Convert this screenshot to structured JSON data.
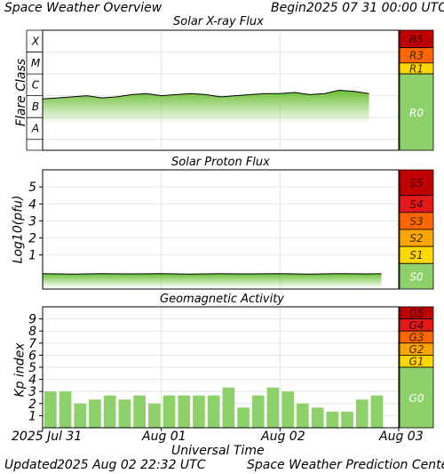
{
  "header": {
    "title": "Space Weather Overview",
    "begin_label": "Begin",
    "begin_date": "2025 07 31 00:00 UTC"
  },
  "footer": {
    "updated_label": "Updated",
    "updated_date": "2025 Aug 02 22:32 UTC",
    "source": "Space Weather Prediction Center",
    "xlabel": "Universal Time"
  },
  "x_axis": {
    "ticks": [
      "2025 Jul 31",
      "Aug 01",
      "Aug 02",
      "Aug 03"
    ],
    "days": 3
  },
  "colors": {
    "trace_fill": "#7ac943",
    "bar_fill": "#8ed16a",
    "level_green": "#8ed16a",
    "level_yellow": "#ffd700",
    "level_amber": "#ffa500",
    "level_orange": "#ff6600",
    "level_red": "#e41a1a",
    "level_darkred": "#c00000"
  },
  "chart_data": [
    {
      "type": "area",
      "title": "Solar X-ray Flux",
      "ylabel": "Flare Class",
      "classes": [
        "X",
        "M",
        "C",
        "B",
        "A"
      ],
      "ylim_log": [
        -8.5,
        -3
      ],
      "x_hours": [
        0,
        3,
        6,
        9,
        12,
        15,
        18,
        21,
        24,
        27,
        30,
        33,
        36,
        39,
        42,
        45,
        48,
        51,
        54,
        57,
        60,
        63,
        66,
        69,
        72
      ],
      "flux_log": [
        -6.15,
        -6.1,
        -6.05,
        -6.0,
        -6.1,
        -6.05,
        -5.95,
        -5.9,
        -6.0,
        -5.95,
        -5.9,
        -5.95,
        -6.05,
        -6.0,
        -5.95,
        -5.9,
        -5.9,
        -5.85,
        -5.95,
        -5.9,
        -5.75,
        -5.8,
        -5.9,
        -5.95,
        -6.05
      ],
      "levels": [
        {
          "label": "R5",
          "color": "#c00000"
        },
        {
          "label": "R3",
          "color": "#ff6600"
        },
        {
          "label": "R1",
          "color": "#ffd700"
        },
        {
          "label": "R0",
          "color": "#8ed16a"
        }
      ]
    },
    {
      "type": "area",
      "title": "Solar Proton Flux",
      "ylabel": "Log10(pfu)",
      "ylim": [
        -1,
        6
      ],
      "yticks": [
        1,
        2,
        3,
        4,
        5
      ],
      "x_hours": [
        0,
        6,
        12,
        18,
        24,
        30,
        36,
        42,
        48,
        54,
        60,
        66,
        72
      ],
      "log_pfu": [
        -0.1,
        -0.12,
        -0.1,
        -0.11,
        -0.1,
        -0.12,
        -0.1,
        -0.11,
        -0.1,
        -0.12,
        -0.1,
        -0.11,
        -0.1
      ],
      "levels": [
        {
          "label": "S5",
          "color": "#c00000"
        },
        {
          "label": "S4",
          "color": "#e41a1a"
        },
        {
          "label": "S3",
          "color": "#ff6600"
        },
        {
          "label": "S2",
          "color": "#ffa500"
        },
        {
          "label": "S1",
          "color": "#ffd700"
        },
        {
          "label": "S0",
          "color": "#8ed16a"
        }
      ]
    },
    {
      "type": "bar",
      "title": "Geomagnetic Activity",
      "ylabel": "Kp index",
      "ylim": [
        0,
        10
      ],
      "yticks": [
        1,
        2,
        3,
        4,
        5,
        6,
        7,
        8,
        9
      ],
      "bar_hours": 3,
      "values": [
        3.0,
        3.0,
        2.0,
        2.33,
        2.67,
        2.33,
        2.67,
        2.0,
        2.67,
        2.67,
        2.67,
        2.67,
        3.33,
        1.67,
        2.67,
        3.33,
        3.0,
        2.0,
        1.67,
        1.33,
        1.33,
        2.33,
        2.67
      ],
      "levels": [
        {
          "label": "G5",
          "color": "#c00000"
        },
        {
          "label": "G4",
          "color": "#e41a1a"
        },
        {
          "label": "G3",
          "color": "#ff6600"
        },
        {
          "label": "G2",
          "color": "#ffa500"
        },
        {
          "label": "G1",
          "color": "#ffd700"
        },
        {
          "label": "G0",
          "color": "#8ed16a"
        }
      ]
    }
  ]
}
